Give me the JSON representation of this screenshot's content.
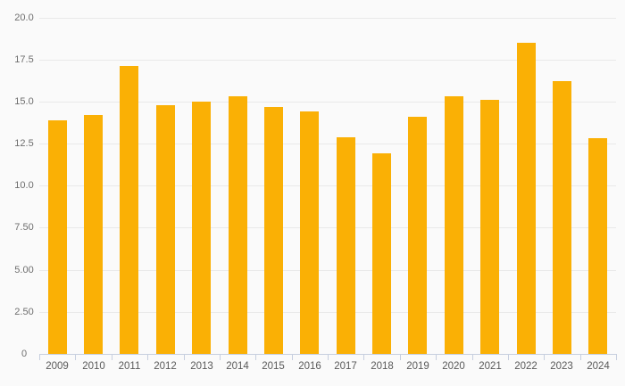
{
  "chart_data": {
    "type": "bar",
    "title": "",
    "xlabel": "",
    "ylabel": "",
    "categories": [
      "2009",
      "2010",
      "2011",
      "2012",
      "2013",
      "2014",
      "2015",
      "2016",
      "2017",
      "2018",
      "2019",
      "2020",
      "2021",
      "2022",
      "2023",
      "2024"
    ],
    "values": [
      13.9,
      14.2,
      17.1,
      14.8,
      15.0,
      15.3,
      14.7,
      14.4,
      12.9,
      11.9,
      14.1,
      15.3,
      15.1,
      18.5,
      16.2,
      12.8
    ],
    "ylim": [
      0,
      20
    ],
    "yticks": [
      {
        "value": 0,
        "label": "0"
      },
      {
        "value": 2.5,
        "label": "2.50"
      },
      {
        "value": 5,
        "label": "5.00"
      },
      {
        "value": 7.5,
        "label": "7.50"
      },
      {
        "value": 10,
        "label": "10.0"
      },
      {
        "value": 12.5,
        "label": "12.5"
      },
      {
        "value": 15,
        "label": "15.0"
      },
      {
        "value": 17.5,
        "label": "17.5"
      },
      {
        "value": 20,
        "label": "20.0"
      }
    ],
    "grid": "horizontal only",
    "legend": false,
    "colors": {
      "bar": "#FAB005",
      "background": "#FAFAFA",
      "gridline": "#E9E9E9",
      "axis": "#C7CFDF",
      "y_label_text": "#6E6E6E",
      "x_label_text": "#595959"
    }
  }
}
